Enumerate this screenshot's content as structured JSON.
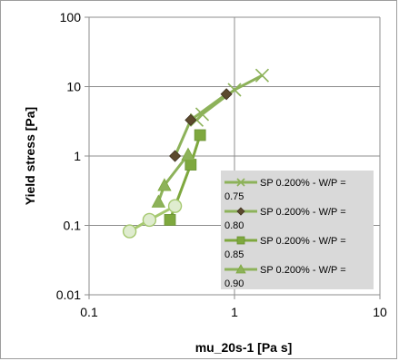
{
  "chart_data": {
    "type": "scatter",
    "xscale": "log",
    "yscale": "log",
    "xlim": [
      0.1,
      10
    ],
    "ylim": [
      0.01,
      100
    ],
    "xlabel": "mu_20s-1 [Pa s]",
    "ylabel": "Yield stress [Pa]",
    "x_ticks": [
      "0.1",
      "1",
      "10"
    ],
    "y_ticks": [
      "0.01",
      "0.1",
      "1",
      "10",
      "100"
    ],
    "grid": "major",
    "legend_position": "right",
    "series": [
      {
        "name_lines": [
          "SP 0.200% - W/P =",
          "0.75"
        ],
        "marker": "x",
        "color": "#8db25a",
        "points": [
          [
            0.55,
            3.3
          ],
          [
            0.6,
            4.0
          ],
          [
            1.0,
            9.0
          ],
          [
            1.55,
            14.5
          ]
        ]
      },
      {
        "name_lines": [
          "SP 0.200% - W/P =",
          "0.80"
        ],
        "marker": "diamond",
        "color": "#5c4a2e",
        "line_color": "#8db25a",
        "points": [
          [
            0.39,
            1.0
          ],
          [
            0.5,
            3.3
          ],
          [
            0.88,
            7.8
          ]
        ]
      },
      {
        "name_lines": [
          "SP 0.200% - W/P =",
          "0.85"
        ],
        "marker": "square",
        "color": "#7ea83e",
        "points": [
          [
            0.36,
            0.12
          ],
          [
            0.5,
            0.75
          ],
          [
            0.58,
            2.0
          ]
        ]
      },
      {
        "name_lines": [
          "SP 0.200% - W/P =",
          "0.90"
        ],
        "marker": "triangle",
        "color": "#8db25a",
        "points": [
          [
            0.3,
            0.22
          ],
          [
            0.33,
            0.38
          ],
          [
            0.48,
            1.05
          ]
        ]
      },
      {
        "name_lines": [],
        "marker": "circle",
        "color": "#dfeccf",
        "line_color": "#a5c86f",
        "points": [
          [
            0.19,
            0.082
          ],
          [
            0.26,
            0.12
          ],
          [
            0.39,
            0.19
          ]
        ]
      }
    ]
  }
}
